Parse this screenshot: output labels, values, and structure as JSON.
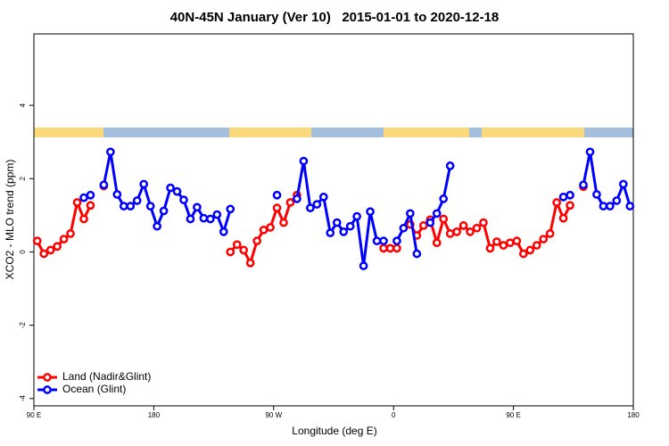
{
  "chart_data": {
    "type": "line",
    "title": "40N-45N January (Ver 10)   2015-01-01 to 2020-12-18",
    "x_label": "Longitude (deg E)",
    "y_label": "XCO2 - MLO trend (ppm)",
    "xlim": [
      90,
      540
    ],
    "ylim": [
      -4.2,
      5.95
    ],
    "xticks": [
      {
        "value": 90,
        "label": "90 E"
      },
      180,
      {
        "value": 270,
        "label": "90 W"
      },
      {
        "value": 360,
        "label": "0"
      },
      {
        "value": 450,
        "label": "90 E"
      },
      {
        "value": 540,
        "label": "180"
      }
    ],
    "yticks": [
      -4,
      -2,
      0,
      2,
      4
    ],
    "legend": "bottom-left",
    "x": [
      92.5,
      97.5,
      102.5,
      107.5,
      112.5,
      117.5,
      122.5,
      127.5,
      132.5,
      137.5,
      142.5,
      147.5,
      152.5,
      157.5,
      162.5,
      167.5,
      172.5,
      177.5,
      182.5,
      187.5,
      192.5,
      197.5,
      202.5,
      207.5,
      212.5,
      217.5,
      222.5,
      227.5,
      232.5,
      237.5,
      242.5,
      247.5,
      252.5,
      257.5,
      262.5,
      267.5,
      272.5,
      277.5,
      282.5,
      287.5,
      292.5,
      297.5,
      302.5,
      307.5,
      312.5,
      317.5,
      322.5,
      327.5,
      332.5,
      337.5,
      342.5,
      347.5,
      352.5,
      357.5,
      362.5,
      367.5,
      372.5,
      377.5,
      382.5,
      387.5,
      392.5,
      397.5,
      402.5,
      407.5,
      412.5,
      417.5,
      422.5,
      427.5,
      432.5,
      437.5,
      442.5,
      447.5,
      452.5,
      457.5,
      462.5,
      467.5,
      472.5,
      477.5,
      482.5,
      487.5,
      492.5,
      497.5,
      502.5,
      507.5,
      512.5,
      517.5,
      522.5,
      527.5,
      532.5,
      537.5
    ],
    "series": [
      {
        "name": "Land (Nadir&Glint)",
        "color": "#ff0000",
        "values": [
          0.3,
          -0.05,
          0.05,
          0.15,
          0.35,
          0.5,
          1.35,
          0.9,
          1.27,
          null,
          1.8,
          null,
          null,
          null,
          null,
          null,
          null,
          null,
          null,
          null,
          null,
          null,
          null,
          null,
          null,
          null,
          null,
          null,
          null,
          0,
          0.2,
          0.05,
          -0.3,
          0.3,
          0.6,
          0.67,
          1.2,
          0.8,
          1.35,
          1.55,
          null,
          null,
          null,
          null,
          null,
          null,
          null,
          null,
          null,
          null,
          null,
          null,
          0.1,
          0.1,
          0.1,
          null,
          0.75,
          0.45,
          0.72,
          0.88,
          0.25,
          0.9,
          0.5,
          0.55,
          0.72,
          0.55,
          0.65,
          0.8,
          0.1,
          0.28,
          0.18,
          0.25,
          0.3,
          -0.05,
          0.05,
          0.18,
          0.35,
          0.5,
          1.35,
          0.92,
          1.27,
          null,
          1.78,
          null,
          null,
          null,
          null,
          null,
          null,
          null
        ]
      },
      {
        "name": "Ocean (Glint)",
        "color": "#0000ff",
        "values": [
          null,
          null,
          null,
          null,
          null,
          null,
          null,
          1.48,
          1.55,
          null,
          1.83,
          2.73,
          1.57,
          1.25,
          1.25,
          1.4,
          1.85,
          1.25,
          0.7,
          1.12,
          1.75,
          1.65,
          1.42,
          0.9,
          1.22,
          0.92,
          0.9,
          1.02,
          0.55,
          1.17,
          null,
          null,
          null,
          null,
          null,
          null,
          1.55,
          null,
          null,
          1.45,
          2.48,
          1.2,
          1.3,
          1.5,
          0.52,
          0.8,
          0.55,
          0.7,
          0.97,
          -0.38,
          1.1,
          0.3,
          0.3,
          null,
          0.3,
          0.65,
          1.05,
          -0.05,
          null,
          0.8,
          1.05,
          1.45,
          2.35,
          null,
          null,
          null,
          null,
          null,
          null,
          null,
          null,
          null,
          null,
          null,
          null,
          null,
          null,
          null,
          null,
          1.5,
          1.55,
          null,
          1.83,
          2.73,
          1.57,
          1.25,
          1.25,
          1.4,
          1.85,
          1.25
        ]
      }
    ]
  }
}
